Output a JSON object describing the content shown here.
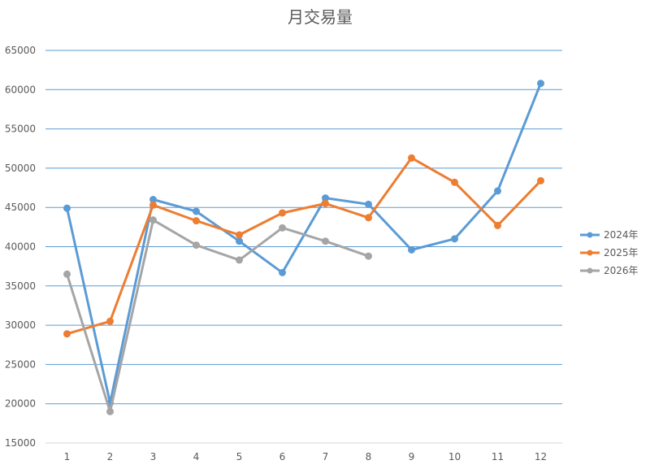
{
  "chart_data": {
    "type": "line",
    "title": "月交易量",
    "xlabel": "",
    "ylabel": "",
    "categories": [
      "1",
      "2",
      "3",
      "4",
      "5",
      "6",
      "7",
      "8",
      "9",
      "10",
      "11",
      "12"
    ],
    "ylim": [
      15000,
      65000
    ],
    "yticks": [
      "15000",
      "20000",
      "25000",
      "30000",
      "35000",
      "40000",
      "45000",
      "50000",
      "55000",
      "60000",
      "65000"
    ],
    "grid": true,
    "legend_position": "right",
    "series": [
      {
        "name": "2024年",
        "color": "#5B9BD5",
        "values": [
          44900,
          20100,
          46000,
          44500,
          40700,
          36700,
          46200,
          45400,
          39600,
          41000,
          47100,
          60800
        ]
      },
      {
        "name": "2025年",
        "color": "#ED7D31",
        "values": [
          28900,
          30500,
          45300,
          43300,
          41500,
          44300,
          45500,
          43700,
          51300,
          48200,
          42700,
          48400
        ]
      },
      {
        "name": "2026年",
        "color": "#A5A5A5",
        "values": [
          36500,
          19000,
          43400,
          40200,
          38300,
          42400,
          40700,
          38800,
          null,
          null,
          null,
          null
        ]
      }
    ]
  }
}
